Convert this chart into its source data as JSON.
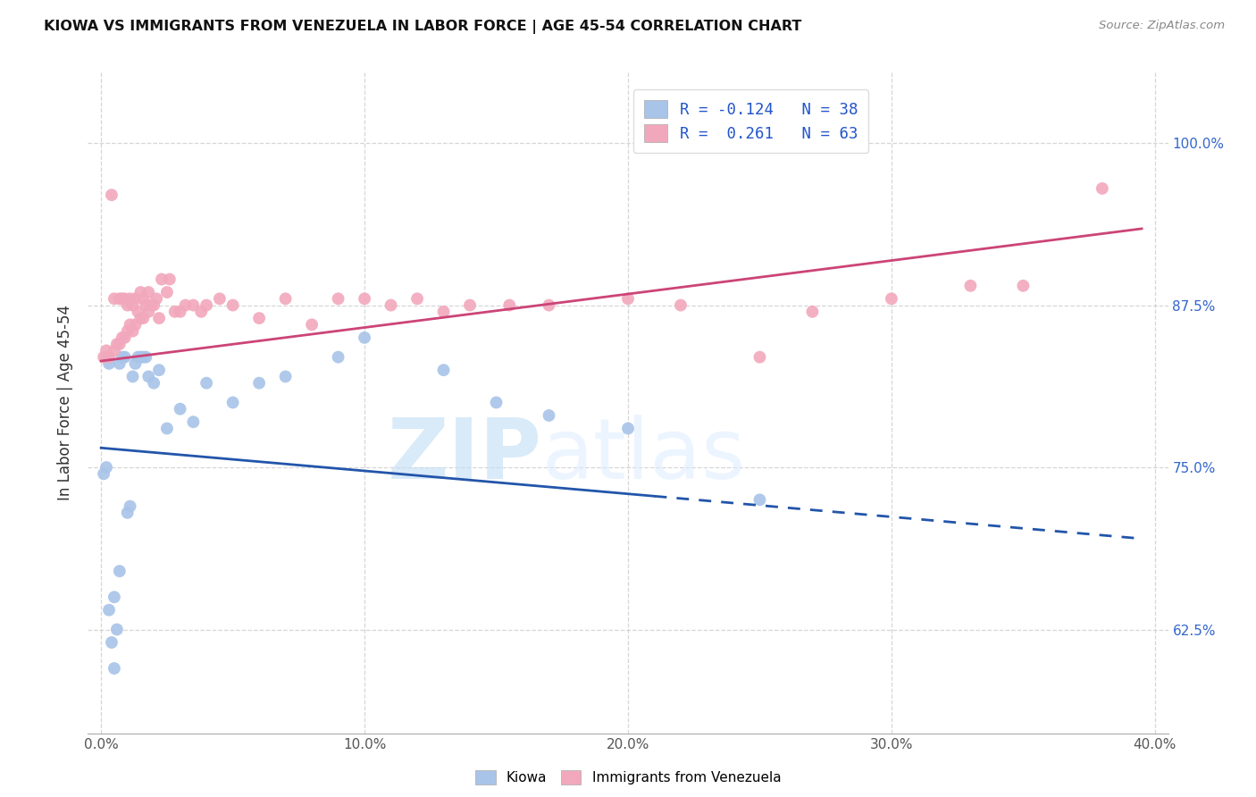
{
  "title": "KIOWA VS IMMIGRANTS FROM VENEZUELA IN LABOR FORCE | AGE 45-54 CORRELATION CHART",
  "source": "Source: ZipAtlas.com",
  "ylabel": "In Labor Force | Age 45-54",
  "kiowa_R": -0.124,
  "kiowa_N": 38,
  "venezuela_R": 0.261,
  "venezuela_N": 63,
  "blue_color": "#a8c4e8",
  "pink_color": "#f2a8bc",
  "blue_line_color": "#2255aa",
  "pink_line_color": "#cc4477",
  "background_color": "#ffffff",
  "watermark_zip": "ZIP",
  "watermark_atlas": "atlas",
  "xlim": [
    -0.005,
    0.405
  ],
  "ylim": [
    0.545,
    1.055
  ],
  "xticks": [
    0.0,
    0.1,
    0.2,
    0.3,
    0.4
  ],
  "yticks": [
    0.625,
    0.75,
    0.875,
    1.0
  ],
  "kiowa_x": [
    0.001,
    0.002,
    0.002,
    0.003,
    0.004,
    0.005,
    0.006,
    0.007,
    0.008,
    0.009,
    0.01,
    0.011,
    0.012,
    0.013,
    0.014,
    0.015,
    0.016,
    0.017,
    0.018,
    0.02,
    0.022,
    0.025,
    0.03,
    0.035,
    0.04,
    0.05,
    0.06,
    0.07,
    0.09,
    0.1,
    0.13,
    0.15,
    0.17,
    0.2,
    0.003,
    0.005,
    0.007,
    0.25
  ],
  "kiowa_y": [
    0.745,
    0.75,
    0.835,
    0.83,
    0.615,
    0.595,
    0.625,
    0.83,
    0.835,
    0.835,
    0.715,
    0.72,
    0.82,
    0.83,
    0.835,
    0.835,
    0.835,
    0.835,
    0.82,
    0.815,
    0.825,
    0.78,
    0.795,
    0.785,
    0.815,
    0.8,
    0.815,
    0.82,
    0.835,
    0.85,
    0.825,
    0.8,
    0.79,
    0.78,
    0.64,
    0.65,
    0.67,
    0.725
  ],
  "venezuela_x": [
    0.001,
    0.002,
    0.003,
    0.004,
    0.005,
    0.005,
    0.006,
    0.007,
    0.007,
    0.008,
    0.008,
    0.009,
    0.009,
    0.01,
    0.01,
    0.011,
    0.011,
    0.012,
    0.012,
    0.013,
    0.013,
    0.014,
    0.015,
    0.015,
    0.016,
    0.016,
    0.017,
    0.018,
    0.018,
    0.019,
    0.02,
    0.021,
    0.022,
    0.023,
    0.025,
    0.026,
    0.028,
    0.03,
    0.032,
    0.035,
    0.038,
    0.04,
    0.045,
    0.05,
    0.06,
    0.07,
    0.08,
    0.09,
    0.1,
    0.11,
    0.12,
    0.13,
    0.14,
    0.155,
    0.17,
    0.2,
    0.22,
    0.25,
    0.27,
    0.3,
    0.33,
    0.35,
    0.38
  ],
  "venezuela_y": [
    0.835,
    0.84,
    0.835,
    0.96,
    0.84,
    0.88,
    0.845,
    0.845,
    0.88,
    0.85,
    0.88,
    0.85,
    0.88,
    0.855,
    0.875,
    0.86,
    0.88,
    0.855,
    0.875,
    0.86,
    0.88,
    0.87,
    0.865,
    0.885,
    0.865,
    0.88,
    0.875,
    0.87,
    0.885,
    0.875,
    0.875,
    0.88,
    0.865,
    0.895,
    0.885,
    0.895,
    0.87,
    0.87,
    0.875,
    0.875,
    0.87,
    0.875,
    0.88,
    0.875,
    0.865,
    0.88,
    0.86,
    0.88,
    0.88,
    0.875,
    0.88,
    0.87,
    0.875,
    0.875,
    0.875,
    0.88,
    0.875,
    0.835,
    0.87,
    0.88,
    0.89,
    0.89,
    0.965
  ]
}
